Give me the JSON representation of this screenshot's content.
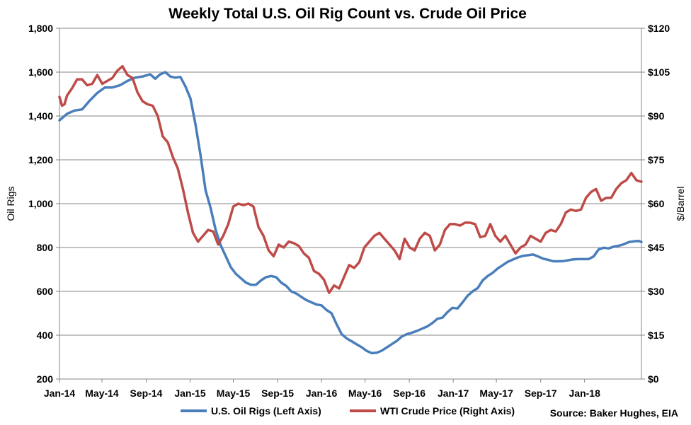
{
  "chart_data": {
    "type": "line",
    "title": "Weekly Total U.S. Oil Rig Count vs. Crude Oil Price",
    "ylabel_left": "Oil Rigs",
    "ylabel_right": "$/Barrel",
    "x_tick_labels": [
      "Jan-14",
      "May-14",
      "Sep-14",
      "Jan-15",
      "May-15",
      "Sep-15",
      "Jan-16",
      "May-16",
      "Sep-16",
      "Jan-17",
      "May-17",
      "Sep-17",
      "Jan-18"
    ],
    "x_range": [
      "2014-01-03",
      "2018-06-08"
    ],
    "y_left_ticks": [
      "200",
      "400",
      "600",
      "800",
      "1,000",
      "1,200",
      "1,400",
      "1,600",
      "1,800"
    ],
    "y_left_range": [
      200,
      1800
    ],
    "y_right_ticks": [
      "$0",
      "$15",
      "$30",
      "$45",
      "$60",
      "$75",
      "$90",
      "$105",
      "$120"
    ],
    "y_right_range": [
      0,
      120
    ],
    "grid": "horizontal",
    "legend_position": "bottom",
    "source": "Source: Baker Hughes, EIA",
    "series": [
      {
        "name": "U.S. Oil Rigs (Left Axis)",
        "axis": "left",
        "color": "#4A7EBB",
        "points": [
          [
            "2014-01-03",
            1380
          ],
          [
            "2014-01-24",
            1410
          ],
          [
            "2014-02-14",
            1425
          ],
          [
            "2014-03-07",
            1430
          ],
          [
            "2014-03-28",
            1470
          ],
          [
            "2014-04-18",
            1505
          ],
          [
            "2014-05-09",
            1530
          ],
          [
            "2014-05-30",
            1530
          ],
          [
            "2014-06-20",
            1540
          ],
          [
            "2014-07-11",
            1560
          ],
          [
            "2014-08-01",
            1575
          ],
          [
            "2014-08-22",
            1580
          ],
          [
            "2014-09-12",
            1590
          ],
          [
            "2014-09-26",
            1570
          ],
          [
            "2014-10-10",
            1590
          ],
          [
            "2014-10-24",
            1600
          ],
          [
            "2014-11-07",
            1580
          ],
          [
            "2014-11-21",
            1575
          ],
          [
            "2014-12-05",
            1578
          ],
          [
            "2014-12-19",
            1535
          ],
          [
            "2015-01-02",
            1480
          ],
          [
            "2015-01-16",
            1360
          ],
          [
            "2015-01-30",
            1220
          ],
          [
            "2015-02-13",
            1060
          ],
          [
            "2015-02-27",
            980
          ],
          [
            "2015-03-13",
            880
          ],
          [
            "2015-03-27",
            810
          ],
          [
            "2015-04-10",
            760
          ],
          [
            "2015-04-24",
            710
          ],
          [
            "2015-05-08",
            680
          ],
          [
            "2015-05-22",
            660
          ],
          [
            "2015-06-05",
            640
          ],
          [
            "2015-06-19",
            630
          ],
          [
            "2015-07-03",
            630
          ],
          [
            "2015-07-17",
            650
          ],
          [
            "2015-07-31",
            665
          ],
          [
            "2015-08-14",
            670
          ],
          [
            "2015-08-28",
            665
          ],
          [
            "2015-09-11",
            640
          ],
          [
            "2015-09-25",
            625
          ],
          [
            "2015-10-09",
            600
          ],
          [
            "2015-10-23",
            590
          ],
          [
            "2015-11-06",
            575
          ],
          [
            "2015-11-20",
            560
          ],
          [
            "2015-12-04",
            550
          ],
          [
            "2015-12-18",
            540
          ],
          [
            "2016-01-01",
            536
          ],
          [
            "2016-01-15",
            515
          ],
          [
            "2016-01-29",
            500
          ],
          [
            "2016-02-12",
            450
          ],
          [
            "2016-02-26",
            405
          ],
          [
            "2016-03-11",
            385
          ],
          [
            "2016-03-25",
            372
          ],
          [
            "2016-04-08",
            358
          ],
          [
            "2016-04-22",
            345
          ],
          [
            "2016-05-06",
            328
          ],
          [
            "2016-05-20",
            318
          ],
          [
            "2016-06-03",
            320
          ],
          [
            "2016-06-17",
            330
          ],
          [
            "2016-07-01",
            345
          ],
          [
            "2016-07-15",
            360
          ],
          [
            "2016-07-29",
            375
          ],
          [
            "2016-08-12",
            395
          ],
          [
            "2016-08-26",
            405
          ],
          [
            "2016-09-09",
            412
          ],
          [
            "2016-09-23",
            420
          ],
          [
            "2016-10-07",
            430
          ],
          [
            "2016-10-21",
            440
          ],
          [
            "2016-11-04",
            455
          ],
          [
            "2016-11-18",
            475
          ],
          [
            "2016-12-02",
            480
          ],
          [
            "2016-12-16",
            505
          ],
          [
            "2016-12-30",
            525
          ],
          [
            "2017-01-13",
            522
          ],
          [
            "2017-01-27",
            550
          ],
          [
            "2017-02-10",
            580
          ],
          [
            "2017-02-24",
            600
          ],
          [
            "2017-03-10",
            615
          ],
          [
            "2017-03-24",
            650
          ],
          [
            "2017-04-07",
            670
          ],
          [
            "2017-04-21",
            685
          ],
          [
            "2017-05-05",
            705
          ],
          [
            "2017-05-19",
            720
          ],
          [
            "2017-06-02",
            735
          ],
          [
            "2017-06-16",
            745
          ],
          [
            "2017-06-30",
            755
          ],
          [
            "2017-07-14",
            762
          ],
          [
            "2017-07-28",
            765
          ],
          [
            "2017-08-11",
            768
          ],
          [
            "2017-08-25",
            759
          ],
          [
            "2017-09-08",
            749
          ],
          [
            "2017-09-22",
            744
          ],
          [
            "2017-10-06",
            737
          ],
          [
            "2017-10-20",
            737
          ],
          [
            "2017-11-03",
            738
          ],
          [
            "2017-11-17",
            742
          ],
          [
            "2017-12-01",
            746
          ],
          [
            "2017-12-15",
            747
          ],
          [
            "2017-12-29",
            747
          ],
          [
            "2018-01-12",
            747
          ],
          [
            "2018-01-26",
            759
          ],
          [
            "2018-02-09",
            791
          ],
          [
            "2018-02-23",
            799
          ],
          [
            "2018-03-09",
            796
          ],
          [
            "2018-03-23",
            804
          ],
          [
            "2018-04-06",
            808
          ],
          [
            "2018-04-20",
            815
          ],
          [
            "2018-05-04",
            825
          ],
          [
            "2018-05-18",
            828
          ],
          [
            "2018-06-01",
            830
          ],
          [
            "2018-06-08",
            825
          ]
        ]
      },
      {
        "name": "WTI Crude Price (Right Axis)",
        "axis": "right",
        "color": "#BE4B48",
        "points": [
          [
            "2014-01-03",
            96.5
          ],
          [
            "2014-01-10",
            93.5
          ],
          [
            "2014-01-17",
            94
          ],
          [
            "2014-01-24",
            97
          ],
          [
            "2014-02-07",
            99.5
          ],
          [
            "2014-02-21",
            102.5
          ],
          [
            "2014-03-07",
            102.5
          ],
          [
            "2014-03-21",
            100.5
          ],
          [
            "2014-04-04",
            101
          ],
          [
            "2014-04-18",
            104
          ],
          [
            "2014-05-02",
            101
          ],
          [
            "2014-05-16",
            102
          ],
          [
            "2014-05-30",
            103
          ],
          [
            "2014-06-13",
            105.5
          ],
          [
            "2014-06-27",
            107
          ],
          [
            "2014-07-11",
            104
          ],
          [
            "2014-07-25",
            103
          ],
          [
            "2014-08-08",
            98
          ],
          [
            "2014-08-22",
            95
          ],
          [
            "2014-09-05",
            94
          ],
          [
            "2014-09-19",
            93.5
          ],
          [
            "2014-10-03",
            90
          ],
          [
            "2014-10-17",
            83
          ],
          [
            "2014-10-31",
            81
          ],
          [
            "2014-11-14",
            76
          ],
          [
            "2014-11-28",
            72
          ],
          [
            "2014-12-12",
            65
          ],
          [
            "2014-12-26",
            57
          ],
          [
            "2015-01-09",
            50
          ],
          [
            "2015-01-23",
            47
          ],
          [
            "2015-02-06",
            49
          ],
          [
            "2015-02-20",
            51
          ],
          [
            "2015-03-06",
            50.5
          ],
          [
            "2015-03-20",
            46
          ],
          [
            "2015-04-03",
            49
          ],
          [
            "2015-04-17",
            53
          ],
          [
            "2015-05-01",
            59
          ],
          [
            "2015-05-15",
            60
          ],
          [
            "2015-05-29",
            59.5
          ],
          [
            "2015-06-12",
            60
          ],
          [
            "2015-06-26",
            59
          ],
          [
            "2015-07-10",
            52
          ],
          [
            "2015-07-24",
            49
          ],
          [
            "2015-08-07",
            44
          ],
          [
            "2015-08-21",
            42
          ],
          [
            "2015-09-04",
            46
          ],
          [
            "2015-09-18",
            45
          ],
          [
            "2015-10-02",
            47
          ],
          [
            "2015-10-16",
            46.5
          ],
          [
            "2015-10-30",
            45.5
          ],
          [
            "2015-11-13",
            43
          ],
          [
            "2015-11-27",
            41.5
          ],
          [
            "2015-12-11",
            37
          ],
          [
            "2015-12-25",
            36
          ],
          [
            "2016-01-08",
            34
          ],
          [
            "2016-01-22",
            29.5
          ],
          [
            "2016-02-05",
            32
          ],
          [
            "2016-02-19",
            31
          ],
          [
            "2016-03-04",
            35
          ],
          [
            "2016-03-18",
            39
          ],
          [
            "2016-04-01",
            38
          ],
          [
            "2016-04-15",
            40
          ],
          [
            "2016-04-29",
            45
          ],
          [
            "2016-05-13",
            47
          ],
          [
            "2016-05-27",
            49
          ],
          [
            "2016-06-10",
            50
          ],
          [
            "2016-06-24",
            48
          ],
          [
            "2016-07-08",
            46
          ],
          [
            "2016-07-22",
            44
          ],
          [
            "2016-08-05",
            41
          ],
          [
            "2016-08-19",
            48
          ],
          [
            "2016-09-02",
            45
          ],
          [
            "2016-09-16",
            44
          ],
          [
            "2016-09-30",
            48
          ],
          [
            "2016-10-14",
            50
          ],
          [
            "2016-10-28",
            49
          ],
          [
            "2016-11-11",
            44
          ],
          [
            "2016-11-25",
            46
          ],
          [
            "2016-12-09",
            51
          ],
          [
            "2016-12-23",
            53
          ],
          [
            "2017-01-06",
            53
          ],
          [
            "2017-01-20",
            52.5
          ],
          [
            "2017-02-03",
            53.5
          ],
          [
            "2017-02-17",
            53.5
          ],
          [
            "2017-03-03",
            53
          ],
          [
            "2017-03-17",
            48.5
          ],
          [
            "2017-03-31",
            49
          ],
          [
            "2017-04-14",
            53
          ],
          [
            "2017-04-28",
            49
          ],
          [
            "2017-05-12",
            47
          ],
          [
            "2017-05-26",
            49
          ],
          [
            "2017-06-09",
            46
          ],
          [
            "2017-06-23",
            43
          ],
          [
            "2017-07-07",
            45
          ],
          [
            "2017-07-21",
            46
          ],
          [
            "2017-08-04",
            49
          ],
          [
            "2017-08-18",
            48
          ],
          [
            "2017-09-01",
            47
          ],
          [
            "2017-09-15",
            50
          ],
          [
            "2017-09-29",
            51
          ],
          [
            "2017-10-13",
            50.5
          ],
          [
            "2017-10-27",
            53
          ],
          [
            "2017-11-10",
            57
          ],
          [
            "2017-11-24",
            58
          ],
          [
            "2017-12-08",
            57.5
          ],
          [
            "2017-12-22",
            58
          ],
          [
            "2018-01-05",
            62
          ],
          [
            "2018-01-19",
            64
          ],
          [
            "2018-02-02",
            65
          ],
          [
            "2018-02-16",
            61
          ],
          [
            "2018-03-02",
            62
          ],
          [
            "2018-03-16",
            62
          ],
          [
            "2018-03-30",
            65
          ],
          [
            "2018-04-13",
            67
          ],
          [
            "2018-04-27",
            68
          ],
          [
            "2018-05-11",
            70.5
          ],
          [
            "2018-05-25",
            68
          ],
          [
            "2018-06-08",
            67.5
          ]
        ]
      }
    ]
  }
}
